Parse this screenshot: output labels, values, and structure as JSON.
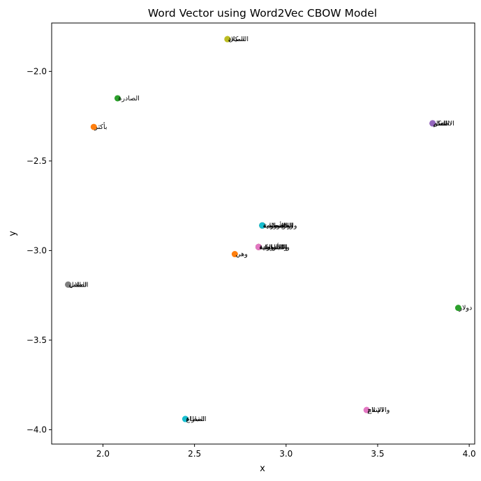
{
  "chart_data": {
    "type": "scatter",
    "title": "Word Vector using Word2Vec CBOW Model",
    "xlabel": "x",
    "ylabel": "y",
    "xlim": [
      1.72,
      4.03
    ],
    "ylim": [
      -4.08,
      -1.73
    ],
    "xticks": [
      2.0,
      2.5,
      3.0,
      3.5,
      4.0
    ],
    "xtick_labels": [
      "2.0",
      "2.5",
      "3.0",
      "3.5",
      "4.0"
    ],
    "yticks": [
      -2.0,
      -2.5,
      -3.0,
      -3.5,
      -4.0
    ],
    "ytick_labels": [
      "−2.0",
      "−2.5",
      "−3.0",
      "−3.5",
      "−4.0"
    ],
    "grid": false,
    "points": [
      {
        "x": 2.68,
        "y": -1.82,
        "label": "الميلاد",
        "color": "#bcbd22"
      },
      {
        "x": 2.68,
        "y": -1.82,
        "label": "السكان",
        "color": "#bcbd22"
      },
      {
        "x": 2.08,
        "y": -2.15,
        "label": "الصادرة",
        "color": "#2ca02c"
      },
      {
        "x": 1.95,
        "y": -2.31,
        "label": "بأكثر",
        "color": "#ff7f0e"
      },
      {
        "x": 3.8,
        "y": -2.29,
        "label": "العلم",
        "color": "#9467bd"
      },
      {
        "x": 3.8,
        "y": -2.29,
        "label": "الحكم",
        "color": "#9467bd"
      },
      {
        "x": 3.8,
        "y": -2.29,
        "label": "الاطفال",
        "color": "#9467bd"
      },
      {
        "x": 2.87,
        "y": -2.86,
        "label": "الفلسطينية",
        "color": "#17becf"
      },
      {
        "x": 2.87,
        "y": -2.86,
        "label": "والاقتصادية",
        "color": "#7f7f7f"
      },
      {
        "x": 2.87,
        "y": -2.86,
        "label": "الأوروبية",
        "color": "#2ca02c"
      },
      {
        "x": 2.87,
        "y": -2.86,
        "label": "والمؤسسات",
        "color": "#1f77b4"
      },
      {
        "x": 2.87,
        "y": -2.86,
        "label": "والإسلامية",
        "color": "#17becf"
      },
      {
        "x": 2.85,
        "y": -2.98,
        "label": "الأمريكية",
        "color": "#e377c2"
      },
      {
        "x": 2.85,
        "y": -2.98,
        "label": "المتحدة",
        "color": "#8c564b"
      },
      {
        "x": 2.85,
        "y": -2.98,
        "label": "والاجتماعية",
        "color": "#bcbd22"
      },
      {
        "x": 2.85,
        "y": -2.98,
        "label": "الاسرائيلية",
        "color": "#d62728"
      },
      {
        "x": 2.85,
        "y": -2.98,
        "label": "والسياسية",
        "color": "#9467bd"
      },
      {
        "x": 2.85,
        "y": -2.98,
        "label": "العربية",
        "color": "#e377c2"
      },
      {
        "x": 2.72,
        "y": -3.02,
        "label": "وهي",
        "color": "#ff7f0e"
      },
      {
        "x": 1.81,
        "y": -3.19,
        "label": "الطلاب",
        "color": "#7f7f7f"
      },
      {
        "x": 1.81,
        "y": -3.19,
        "label": "للطفل",
        "color": "#7f7f7f"
      },
      {
        "x": 3.94,
        "y": -3.32,
        "label": "دولار",
        "color": "#2ca02c"
      },
      {
        "x": 3.44,
        "y": -3.89,
        "label": "الإنتاج",
        "color": "#e377c2"
      },
      {
        "x": 3.44,
        "y": -3.89,
        "label": "والاسلام",
        "color": "#e377c2"
      },
      {
        "x": 2.45,
        "y": -3.94,
        "label": "المباراة",
        "color": "#17becf"
      },
      {
        "x": 2.45,
        "y": -3.94,
        "label": "القطاع",
        "color": "#17becf"
      }
    ]
  }
}
